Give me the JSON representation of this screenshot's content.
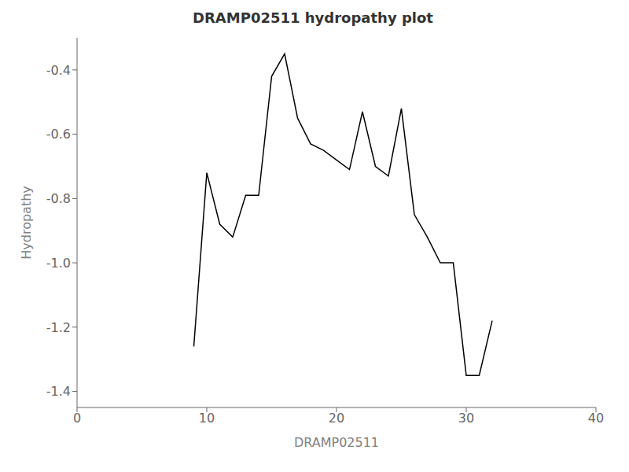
{
  "chart_data": {
    "type": "line",
    "title": "DRAMP02511 hydropathy plot",
    "xlabel": "DRAMP02511",
    "ylabel": "Hydropathy",
    "xlim": [
      0,
      40
    ],
    "ylim": [
      -1.45,
      -0.3
    ],
    "xticks": [
      0,
      10,
      20,
      30,
      40
    ],
    "yticks": [
      -1.4,
      -1.2,
      {
        "value": -1,
        "label": "-1.0"
      },
      -0.8,
      -0.6,
      -0.4
    ],
    "color": "#000000",
    "x": [
      9,
      10,
      11,
      12,
      13,
      14,
      15,
      16,
      17,
      18,
      19,
      20,
      21,
      22,
      23,
      24,
      25,
      26,
      27,
      28,
      29,
      30,
      31,
      32
    ],
    "values": [
      -1.26,
      -0.72,
      -0.88,
      -0.92,
      -0.79,
      -0.79,
      -0.42,
      -0.35,
      -0.55,
      -0.63,
      -0.65,
      -0.68,
      -0.71,
      -0.53,
      -0.7,
      -0.73,
      -0.52,
      -0.85,
      -0.92,
      -1.0,
      -1.0,
      -1.35,
      -1.35,
      -1.18
    ]
  }
}
